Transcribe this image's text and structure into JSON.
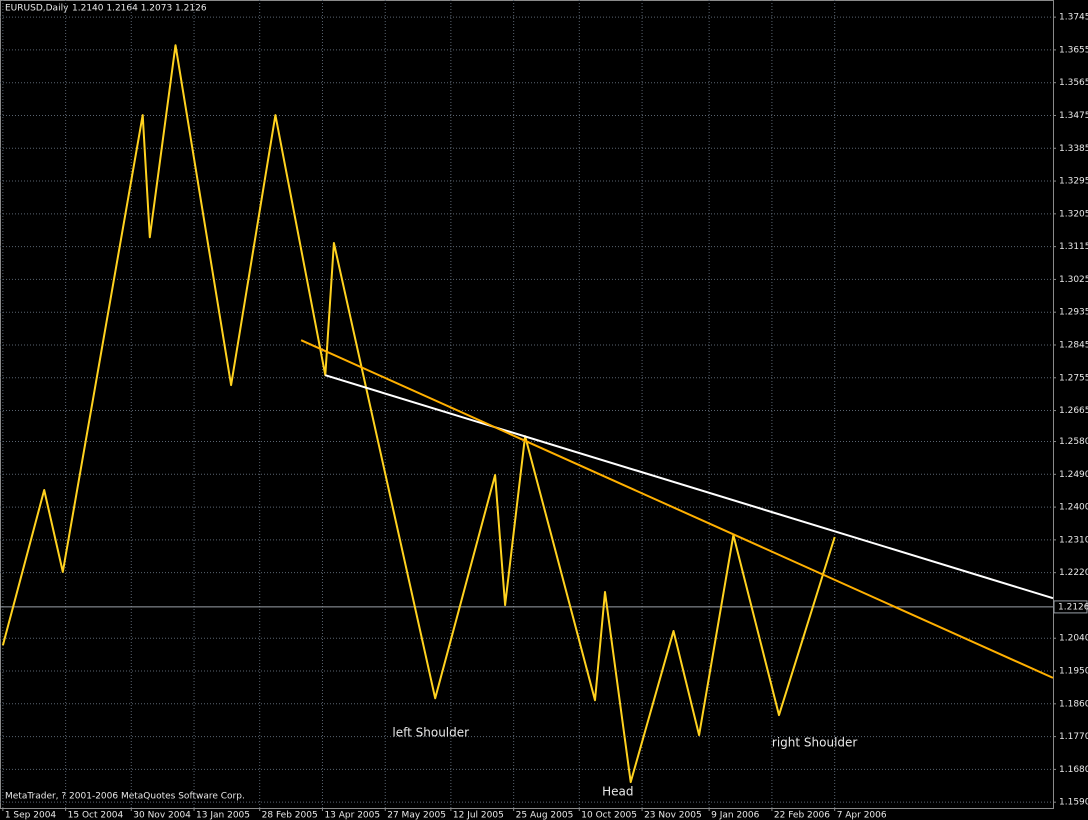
{
  "chart_data": {
    "type": "line",
    "title": "EURUSD,Daily",
    "subtitle": "1.2140 1.2164 1.2073 1.2126",
    "footer": "MetaTrader, ? 2001-2006 MetaQuotes Software Corp.",
    "xlim": [
      "2004-08-30",
      "2006-09-07"
    ],
    "xticks": [
      {
        "value": "2004-09-01",
        "label": "1 Sep 2004"
      },
      {
        "value": "2004-10-15",
        "label": "15 Oct 2004"
      },
      {
        "value": "2004-11-30",
        "label": "30 Nov 2004"
      },
      {
        "value": "2005-01-13",
        "label": "13 Jan 2005"
      },
      {
        "value": "2005-02-28",
        "label": "28 Feb 2005"
      },
      {
        "value": "2005-04-13",
        "label": "13 Apr 2005"
      },
      {
        "value": "2005-05-27",
        "label": "27 May 2005"
      },
      {
        "value": "2005-07-12",
        "label": "12 Jul 2005"
      },
      {
        "value": "2005-08-25",
        "label": "25 Aug 2005"
      },
      {
        "value": "2005-10-10",
        "label": "10 Oct 2005"
      },
      {
        "value": "2005-11-23",
        "label": "23 Nov 2005"
      },
      {
        "value": "2006-01-09",
        "label": "9 Jan 2006"
      },
      {
        "value": "2006-02-22",
        "label": "22 Feb 2006"
      },
      {
        "value": "2006-04-07",
        "label": "7 Apr 2006"
      }
    ],
    "ylim": [
      1.1574,
      1.3792
    ],
    "yticks": [
      1.3745,
      1.3655,
      1.3565,
      1.3475,
      1.3385,
      1.3295,
      1.3205,
      1.3115,
      1.3025,
      1.2935,
      1.2845,
      1.2755,
      1.2665,
      {
        "value": 1.258,
        "label": "1.2580"
      },
      {
        "value": 1.249,
        "label": "1.2490"
      },
      {
        "value": 1.24,
        "label": "1.2400"
      },
      {
        "value": 1.231,
        "label": "1.2310"
      },
      {
        "value": 1.222,
        "label": "1.2220"
      },
      {
        "value": 1.204,
        "label": "1.2040"
      },
      {
        "value": 1.195,
        "label": "1.1950"
      },
      {
        "value": 1.186,
        "label": "1.1860"
      },
      {
        "value": 1.177,
        "label": "1.1770"
      },
      {
        "value": 1.168,
        "label": "1.1680"
      },
      {
        "value": 1.159,
        "label": "1.1590"
      }
    ],
    "grid": true,
    "price_line": 1.2126,
    "series": [
      {
        "color": "#ffd21f",
        "x": [
          "2004-09-01",
          "2004-09-30",
          "2004-10-13",
          "2004-12-08",
          "2004-12-13",
          "2004-12-31",
          "2005-02-08",
          "2005-03-11",
          "2005-04-15",
          "2005-04-21",
          "2005-07-01",
          "2005-08-12",
          "2005-08-19",
          "2005-09-02",
          "2005-10-21",
          "2005-10-28",
          "2005-11-15",
          "2005-12-15",
          "2006-01-02",
          "2006-01-26",
          "2006-02-27",
          "2006-04-07"
        ],
        "values": [
          1.2021,
          1.2447,
          1.2222,
          1.3476,
          1.3141,
          1.3668,
          1.2735,
          1.3476,
          1.2762,
          1.3125,
          1.1875,
          1.2488,
          1.2131,
          1.2595,
          1.187,
          1.2167,
          1.1645,
          1.206,
          1.1774,
          1.2323,
          1.1829,
          1.2318
        ]
      },
      {
        "color": "#ffffff",
        "x": [
          "2005-04-15",
          "2006-09-07"
        ],
        "values": [
          1.2762,
          1.215
        ]
      },
      {
        "color": "#ffb000",
        "x": [
          "2005-03-29",
          "2006-09-07"
        ],
        "values": [
          1.2858,
          1.1931
        ]
      }
    ],
    "annotations": [
      {
        "text": "left Shoulder",
        "x": "2005-06-01",
        "y": 1.178
      },
      {
        "text": "Head",
        "x": "2005-10-26",
        "y": 1.1618
      },
      {
        "text": "right Shoulder",
        "x": "2006-02-22",
        "y": 1.1752
      }
    ]
  }
}
